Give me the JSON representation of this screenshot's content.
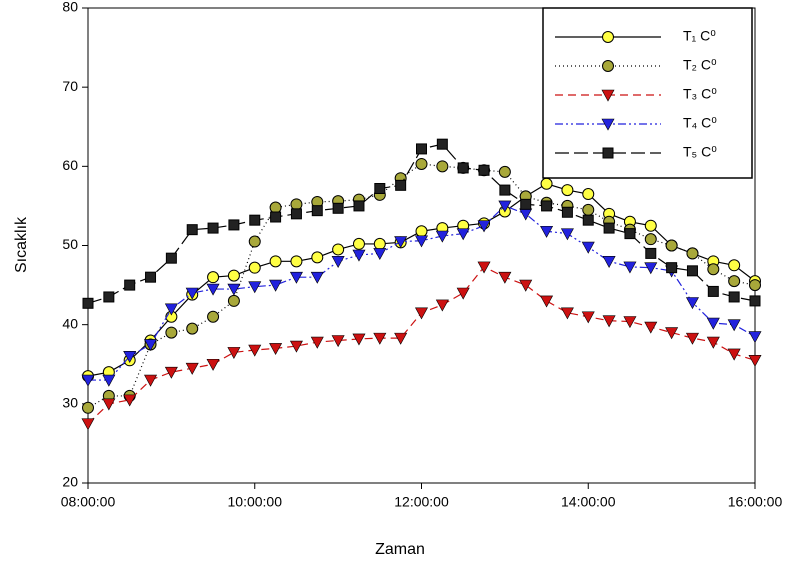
{
  "chart_data": {
    "type": "line",
    "xlabel": "Zaman",
    "ylabel": "Sıcaklık",
    "x": [
      8,
      8.25,
      8.5,
      8.75,
      9,
      9.25,
      9.5,
      9.75,
      10,
      10.25,
      10.5,
      10.75,
      11,
      11.25,
      11.5,
      11.75,
      12,
      12.25,
      12.5,
      12.75,
      13,
      13.25,
      13.5,
      13.75,
      14,
      14.25,
      14.5,
      14.75,
      15,
      15.25,
      15.5,
      15.75,
      16
    ],
    "xlim": [
      8,
      16
    ],
    "xticks": [
      {
        "value": 8,
        "label": "08:00:00"
      },
      {
        "value": 10,
        "label": "10:00:00"
      },
      {
        "value": 12,
        "label": "12:00:00"
      },
      {
        "value": 14,
        "label": "14:00:00"
      },
      {
        "value": 16,
        "label": "16:00:00"
      }
    ],
    "ylim": [
      20,
      80
    ],
    "yticks": [
      20,
      30,
      40,
      50,
      60,
      70,
      80
    ],
    "legend": "upper right",
    "series": [
      {
        "name": "T₁ C⁰",
        "color": "#ffff44",
        "line_color": "#000000",
        "dash": "none",
        "marker": "circle",
        "values": [
          33.5,
          34,
          35.5,
          38,
          41,
          43.8,
          46,
          46.2,
          47.2,
          48,
          48,
          48.5,
          49.5,
          50.2,
          50.2,
          50.4,
          51.8,
          52.2,
          52.5,
          52.8,
          54.3,
          56.2,
          57.8,
          57,
          56.5,
          54,
          53,
          52.5,
          50,
          49,
          48,
          47.5,
          45.5
        ]
      },
      {
        "name": "T₂ C⁰",
        "color": "#a8a83a",
        "line_color": "#000000",
        "dash": "1,3",
        "marker": "circle",
        "values": [
          29.5,
          31,
          31,
          37.5,
          39,
          39.5,
          41,
          43,
          50.5,
          54.8,
          55.2,
          55.5,
          55.6,
          55.8,
          56.4,
          58.5,
          60.3,
          60,
          59.8,
          59.5,
          59.3,
          56.2,
          55.4,
          55,
          54.5,
          53,
          52,
          50.8,
          50,
          49,
          47,
          45.5,
          45
        ]
      },
      {
        "name": "T₃ C⁰",
        "color": "#cc1111",
        "line_color": "#cc1111",
        "dash": "8,5",
        "marker": "triangle-down",
        "values": [
          27.5,
          30,
          30.5,
          33,
          34,
          34.5,
          35,
          36.5,
          36.8,
          37,
          37.3,
          37.8,
          38,
          38.2,
          38.3,
          38.3,
          41.5,
          42.5,
          44,
          47.3,
          46,
          45,
          43,
          41.5,
          41,
          40.5,
          40.4,
          39.7,
          39,
          38.3,
          37.8,
          36.3,
          35.5
        ]
      },
      {
        "name": "T₄ C⁰",
        "color": "#2222dd",
        "line_color": "#2222dd",
        "dash": "8,3,2,3,2,3",
        "marker": "triangle-down",
        "values": [
          33,
          33,
          36,
          37.5,
          42,
          44,
          44.5,
          44.5,
          44.8,
          45,
          46,
          46,
          48,
          48.8,
          49,
          50.5,
          50.6,
          51.2,
          51.5,
          52.5,
          55,
          54,
          51.8,
          51.5,
          49.8,
          48,
          47.3,
          47.2,
          46.8,
          42.8,
          40.2,
          40,
          38.5
        ]
      },
      {
        "name": "T₅ C⁰",
        "color": "#222222",
        "line_color": "#000000",
        "dash": "14,5",
        "marker": "square",
        "values": [
          42.7,
          43.5,
          45,
          46,
          48.4,
          52,
          52.2,
          52.6,
          53.2,
          53.6,
          54,
          54.4,
          54.7,
          55,
          57.2,
          57.6,
          62.2,
          62.8,
          59.8,
          59.5,
          57,
          55.2,
          55,
          54.2,
          53.2,
          52.2,
          51.5,
          49,
          47.2,
          46.8,
          44.2,
          43.5,
          43
        ]
      }
    ]
  }
}
